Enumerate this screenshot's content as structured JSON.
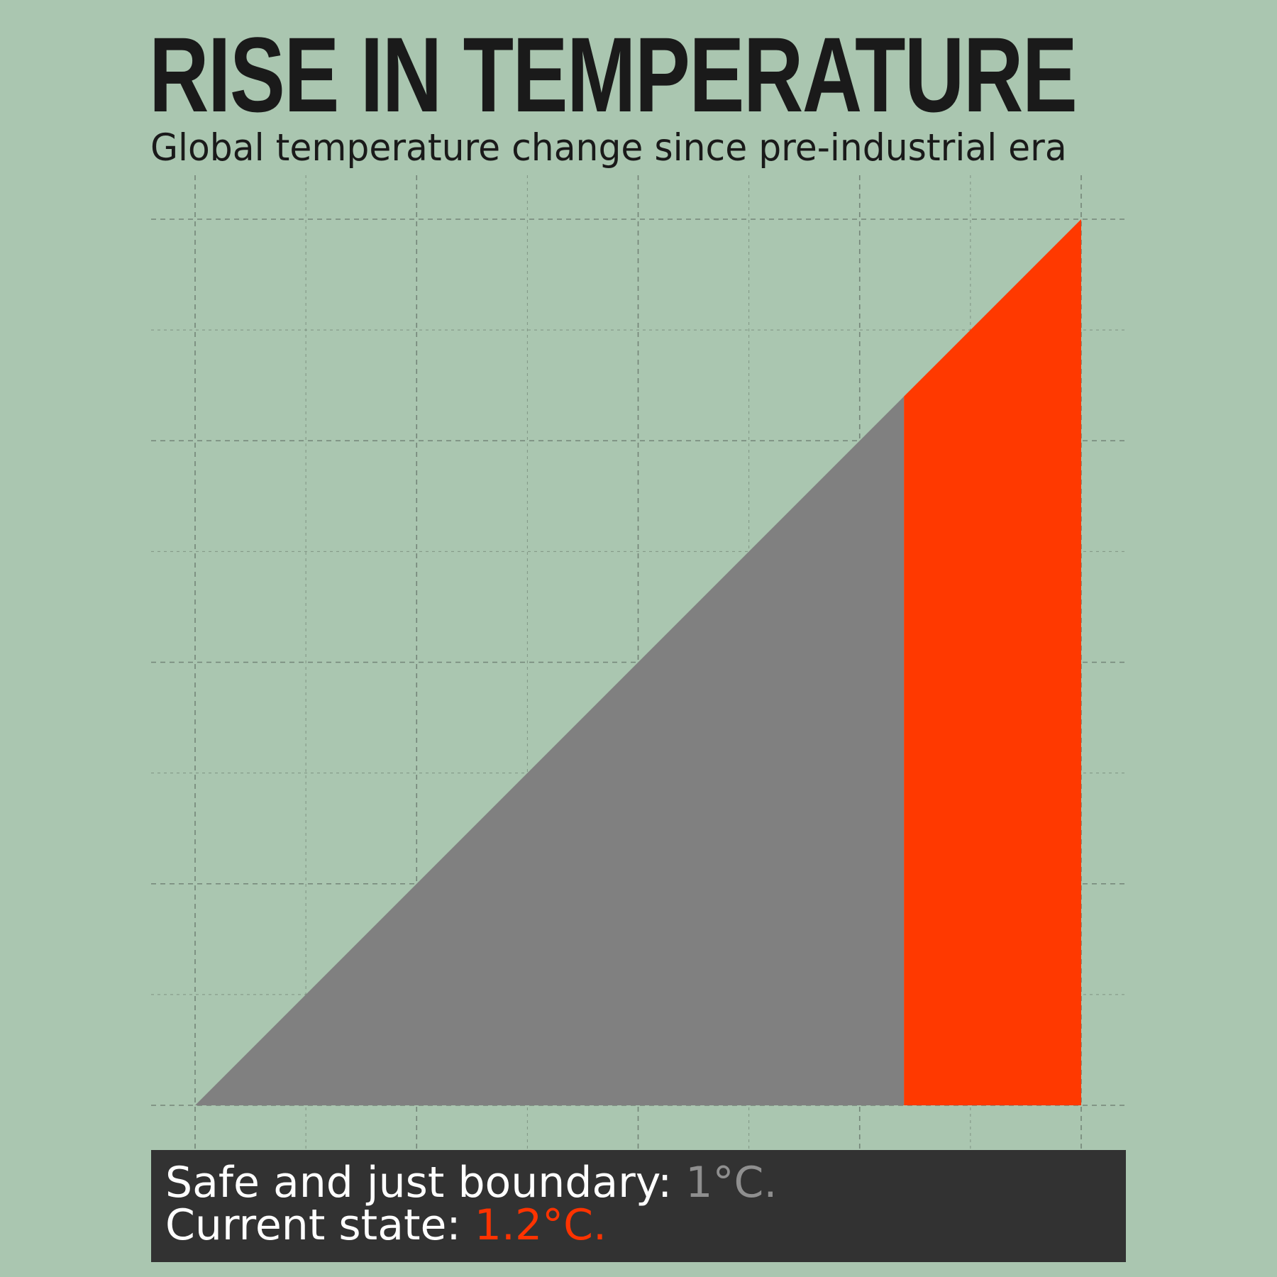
{
  "title": "RISE IN TEMPERATURE",
  "subtitle": "Global temperature change since pre-industrial era",
  "footer": {
    "boundary_label": "Safe and just boundary: ",
    "boundary_value": "1°C.",
    "current_label": "Current state: ",
    "current_value": "1.2°C."
  },
  "colors": {
    "background": "#aac6b0",
    "safe": "#808080",
    "current": "#ff3900",
    "grid": "#6f7f72",
    "footer_bg": "#323232"
  },
  "chart_data": {
    "type": "area",
    "x": [
      0,
      1.2
    ],
    "xlim": [
      0,
      1.2
    ],
    "ylim": [
      0,
      1.2
    ],
    "grid": true,
    "series": [
      {
        "x": [
          0,
          0.96
        ],
        "y": [
          0,
          0.96
        ],
        "color": "#808080"
      },
      {
        "x": [
          0.96,
          1.2
        ],
        "y": [
          0.96,
          1.2
        ],
        "color": "#ff3900"
      }
    ],
    "values": {
      "safe_boundary": 1,
      "current_state": 1.2
    }
  }
}
